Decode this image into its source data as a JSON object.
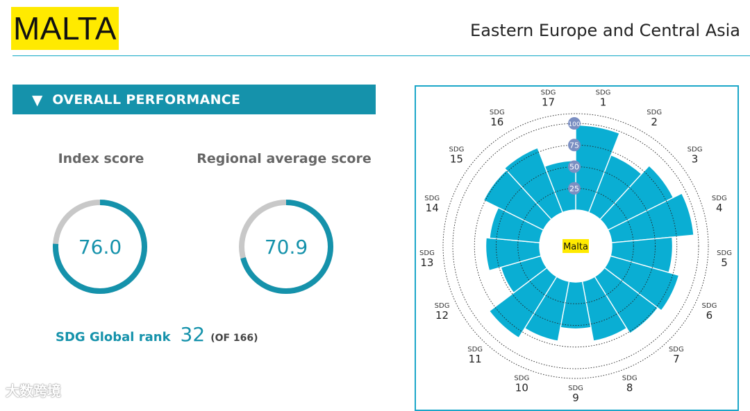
{
  "header": {
    "country": "MALTA",
    "region": "Eastern Europe and Central Asia",
    "badge_color": "#ffea00"
  },
  "section": {
    "arrow": "▼",
    "title": "OVERALL PERFORMANCE",
    "color": "#1592ab"
  },
  "metrics": {
    "index_label": "Index score",
    "index_value": "76.0",
    "index_fraction": 0.76,
    "regional_label": "Regional average score",
    "regional_value": "70.9",
    "regional_fraction": 0.709
  },
  "rank": {
    "label": "SDG Global rank",
    "value": "32",
    "total": "(OF 166)"
  },
  "watermark": "大数跨境",
  "chart_data": {
    "type": "radial-bar",
    "center_label": "Malta",
    "sdg_prefix": "SDG",
    "categories": [
      "1",
      "2",
      "3",
      "4",
      "5",
      "6",
      "7",
      "8",
      "9",
      "10",
      "11",
      "12",
      "13",
      "14",
      "15",
      "16",
      "17"
    ],
    "values": [
      98,
      71,
      84,
      95,
      70,
      82,
      77,
      70,
      54,
      70,
      83,
      48,
      62,
      58,
      77,
      80,
      57
    ],
    "scale_ticks": [
      "25",
      "50",
      "75",
      "100"
    ],
    "scale_max": 100,
    "bar_color": "#0aaed3",
    "center_label_color": "#ffea00"
  }
}
